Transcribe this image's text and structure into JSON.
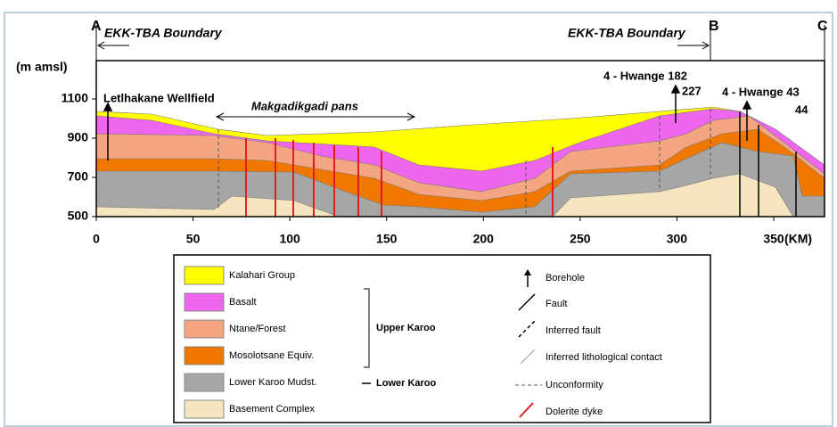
{
  "labels": {
    "a": "A",
    "b": "B",
    "c": "C",
    "boundary_left": "EKK-TBA Boundary",
    "boundary_right": "EKK-TBA Boundary",
    "y_unit": "(m amsl)",
    "x_unit": "(KM)",
    "wellfield": "Letlhakane Wellfield",
    "pans": "Makgadikgadi pans",
    "hwange_182": "4 - Hwange 182",
    "hwange_182_depth": "227",
    "hwange_43": "4 - Hwange 43",
    "hwange_43_depth": "44"
  },
  "axes": {
    "xticks": [
      0,
      50,
      100,
      150,
      200,
      250,
      300,
      350
    ],
    "yticks": [
      500,
      700,
      900,
      1100
    ]
  },
  "legend": {
    "units": [
      {
        "label": "Kalahari Group",
        "color": "#ffff00"
      },
      {
        "label": "Basalt",
        "color": "#ee66ee"
      },
      {
        "label": "Ntane/Forest",
        "color": "#f4a582"
      },
      {
        "label": "Mosolotsane Equiv.",
        "color": "#f07800"
      },
      {
        "label": "Lower Karoo Mudst.",
        "color": "#a6a6a6"
      },
      {
        "label": "Basement Complex",
        "color": "#f5e6c0"
      }
    ],
    "groups": {
      "upper": "Upper Karoo",
      "lower": "Lower Karoo"
    },
    "symbols": [
      "Borehole",
      "Fault",
      "Inferred fault",
      "Inferred lithological contact",
      "Unconformity",
      "Dolerite dyke"
    ]
  }
}
